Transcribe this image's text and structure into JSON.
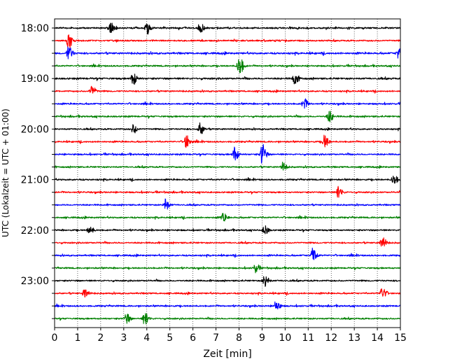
{
  "chart_data": {
    "type": "line",
    "xlabel": "Zeit  [min]",
    "ylabel": "UTC (Lokalzeit = UTC + 01:00)",
    "xlim": [
      0,
      15
    ],
    "x_ticks": [
      0,
      1,
      2,
      3,
      4,
      5,
      6,
      7,
      8,
      9,
      10,
      11,
      12,
      13,
      14,
      15
    ],
    "x_tick_labels": [
      "0",
      "1",
      "2",
      "3",
      "4",
      "5",
      "6",
      "7",
      "8",
      "9",
      "10",
      "11",
      "12",
      "13",
      "14",
      "15"
    ],
    "grid": "vertical dotted lines at each minute",
    "row_labels": [
      "18:00",
      "",
      "",
      "",
      "19:00",
      "",
      "",
      "",
      "20:00",
      "",
      "",
      "",
      "21:00",
      "",
      "",
      "",
      "22:00",
      "",
      "",
      "",
      "23:00",
      "",
      "",
      ""
    ],
    "row_colors": [
      "#000000",
      "#ff0000",
      "#0000ff",
      "#008000"
    ],
    "row_noise_level": [
      0.42,
      0.42,
      0.5,
      0.42,
      0.5,
      0.42,
      0.42,
      0.45,
      0.42,
      0.42,
      0.42,
      0.42,
      0.42,
      0.42,
      0.4,
      0.42,
      0.42,
      0.42,
      0.42,
      0.42,
      0.42,
      0.42,
      0.42,
      0.42
    ],
    "events": [
      {
        "row": 0,
        "minute": 2.4,
        "amplitude": 0.9
      },
      {
        "row": 0,
        "minute": 4.0,
        "amplitude": 0.9
      },
      {
        "row": 0,
        "minute": 6.3,
        "amplitude": 0.8
      },
      {
        "row": 1,
        "minute": 0.6,
        "amplitude": 1.1
      },
      {
        "row": 2,
        "minute": 0.6,
        "amplitude": 1.1
      },
      {
        "row": 2,
        "minute": 14.9,
        "amplitude": 0.8
      },
      {
        "row": 3,
        "minute": 8.0,
        "amplitude": 1.6
      },
      {
        "row": 4,
        "minute": 3.4,
        "amplitude": 1.0
      },
      {
        "row": 4,
        "minute": 10.4,
        "amplitude": 0.9
      },
      {
        "row": 5,
        "minute": 1.6,
        "amplitude": 0.8
      },
      {
        "row": 6,
        "minute": 10.8,
        "amplitude": 0.9
      },
      {
        "row": 7,
        "minute": 11.9,
        "amplitude": 0.9
      },
      {
        "row": 8,
        "minute": 6.3,
        "amplitude": 0.9
      },
      {
        "row": 8,
        "minute": 3.4,
        "amplitude": 0.7
      },
      {
        "row": 9,
        "minute": 5.7,
        "amplitude": 1.0
      },
      {
        "row": 9,
        "minute": 11.7,
        "amplitude": 1.0
      },
      {
        "row": 10,
        "minute": 7.8,
        "amplitude": 1.1
      },
      {
        "row": 10,
        "minute": 9.0,
        "amplitude": 1.6
      },
      {
        "row": 11,
        "minute": 9.9,
        "amplitude": 0.7
      },
      {
        "row": 12,
        "minute": 14.7,
        "amplitude": 0.8
      },
      {
        "row": 13,
        "minute": 12.3,
        "amplitude": 0.9
      },
      {
        "row": 14,
        "minute": 4.8,
        "amplitude": 0.9
      },
      {
        "row": 15,
        "minute": 7.3,
        "amplitude": 0.7
      },
      {
        "row": 16,
        "minute": 1.5,
        "amplitude": 0.7
      },
      {
        "row": 16,
        "minute": 9.1,
        "amplitude": 0.7
      },
      {
        "row": 17,
        "minute": 14.2,
        "amplitude": 1.0
      },
      {
        "row": 18,
        "minute": 11.2,
        "amplitude": 1.3
      },
      {
        "row": 19,
        "minute": 8.7,
        "amplitude": 0.7
      },
      {
        "row": 20,
        "minute": 9.1,
        "amplitude": 1.0
      },
      {
        "row": 21,
        "minute": 1.3,
        "amplitude": 0.8
      },
      {
        "row": 21,
        "minute": 14.2,
        "amplitude": 0.9
      },
      {
        "row": 22,
        "minute": 9.6,
        "amplitude": 0.8
      },
      {
        "row": 23,
        "minute": 3.9,
        "amplitude": 1.0
      },
      {
        "row": 23,
        "minute": 3.1,
        "amplitude": 0.8
      }
    ]
  }
}
